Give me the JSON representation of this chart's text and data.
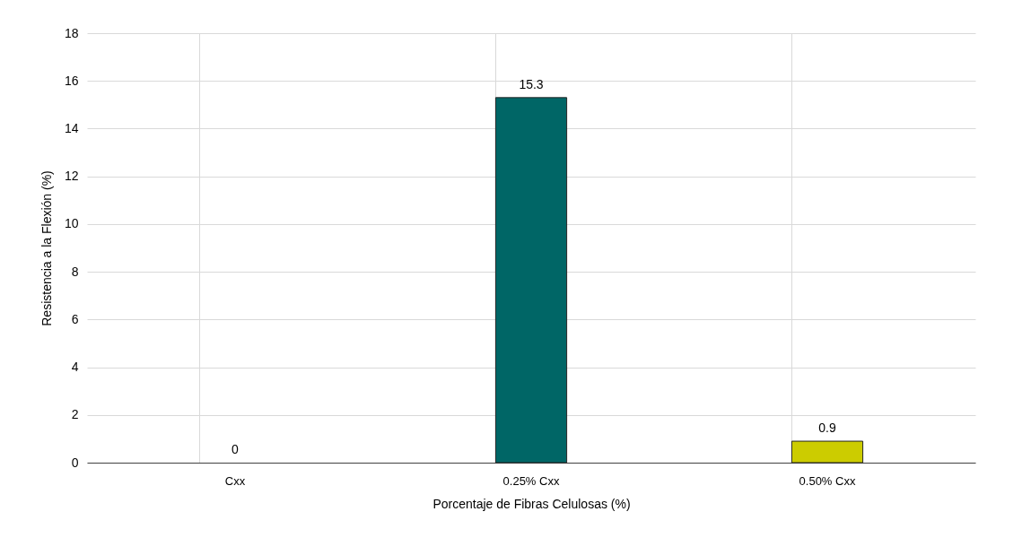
{
  "chart_data": {
    "type": "bar",
    "xlabel": "Porcentaje de Fibras Celulosas (%)",
    "ylabel": "Resistencia a la Flexión (%)",
    "categories": [
      "Cxx",
      "0.25% Cxx",
      "0.50% Cxx"
    ],
    "values": [
      0,
      15.3,
      0.9
    ],
    "colors": [
      "#006666",
      "#006666",
      "#cccc00"
    ],
    "ylim": [
      0,
      18
    ],
    "yticks": [
      0,
      2,
      4,
      6,
      8,
      10,
      12,
      14,
      16,
      18
    ],
    "grid": true,
    "data_labels": true
  }
}
